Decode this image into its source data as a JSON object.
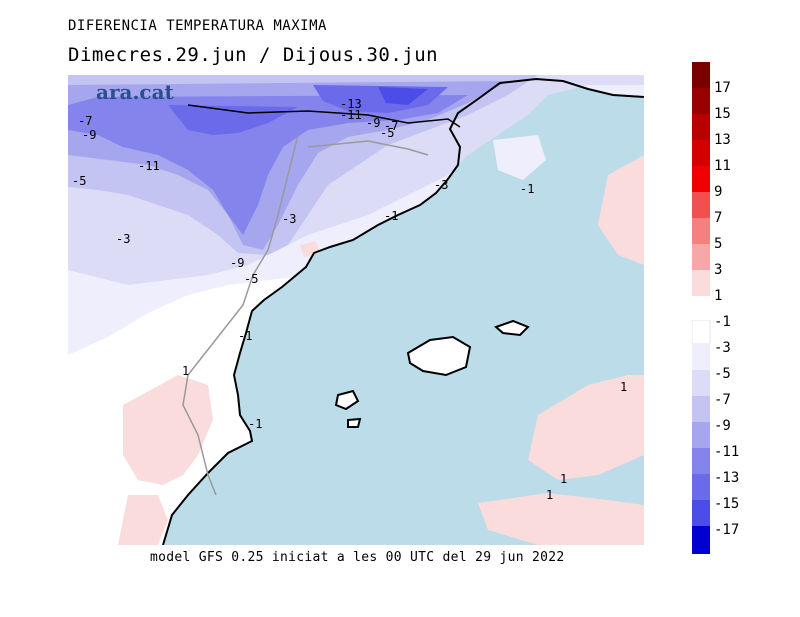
{
  "header": {
    "title": "DIFERENCIA TEMPERATURA MAXIMA",
    "subtitle": "Dimecres.29.jun / Dijous.30.jun"
  },
  "footer": {
    "text": "model GFS 0.25 iniciat a les 00 UTC del 29 jun 2022"
  },
  "logo": {
    "text": "ara.cat",
    "color": "#2a4f8f"
  },
  "colors": {
    "sea": "#bcdcea",
    "land_neutral": "#ffffff",
    "warm_pink": "#fadcdc",
    "cold_1": "#eeeefc",
    "cold_3": "#dcdcf6",
    "cold_5": "#c4c4f2",
    "cold_7": "#a6a6ee",
    "cold_9": "#8484ec",
    "cold_11": "#6a6aea",
    "cold_13": "#4c4ce8"
  },
  "map_labels": [
    "-13",
    "-11",
    "-9",
    "-7",
    "-5",
    "-7",
    "-9",
    "-11",
    "-5",
    "-3",
    "-3",
    "-1",
    "-3",
    "-1",
    "-9",
    "-5",
    "-1",
    "1",
    "-1",
    "1",
    "1",
    "1"
  ],
  "legend_warm": {
    "labels": [
      "17",
      "15",
      "13",
      "11",
      "9",
      "7",
      "5",
      "3",
      "1"
    ],
    "colors": [
      "#7a0000",
      "#9a0000",
      "#b80000",
      "#d40000",
      "#f00000",
      "#f25050",
      "#f48080",
      "#f6a8a8",
      "#fadcdc"
    ]
  },
  "legend_cold": {
    "labels": [
      "-1",
      "-3",
      "-5",
      "-7",
      "-9",
      "-11",
      "-13",
      "-15",
      "-17"
    ],
    "colors": [
      "#ffffff",
      "#eeeefc",
      "#dcdcf6",
      "#c4c4f2",
      "#a6a6ee",
      "#8484ec",
      "#6a6aea",
      "#4c4ce8",
      "#2c2ce6",
      "#0000d0"
    ]
  }
}
